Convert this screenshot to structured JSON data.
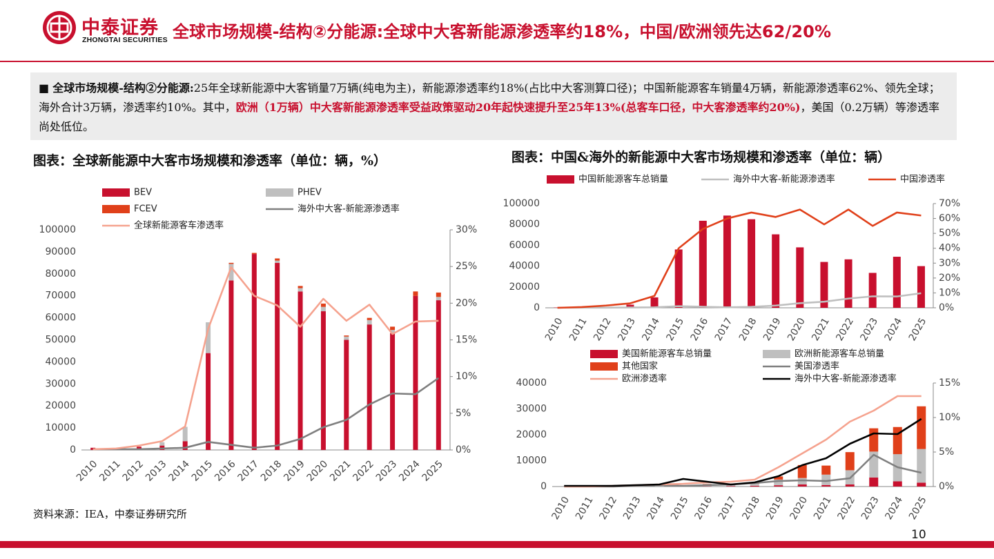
{
  "header": {
    "logo_name": "中泰证券",
    "logo_sub": "ZHONGTAI SECURITIES",
    "title": "全球市场规模-结构②分能源:全球中大客新能源渗透率约18%，中国/欧洲领先达62/20%"
  },
  "summary": {
    "bullet": "■",
    "lead": "全球市场规模-结构②分能源:",
    "text1": "25年全球新能源中大客销量7万辆(纯电为主)，新能源渗透率约18%(占比中大客测算口径)；中国新能源客车销量4万辆，新能源渗透率62%、领先全球；海外合计3万辆，渗透率约10%。其中，",
    "highlight": "欧洲（1万辆）中大客新能源渗透率受益政策驱动20年起快速提升至25年13%(总客车口径，中大客渗透率约20%)",
    "text2": "，美国（0.2万辆）等渗透率尚处低位。"
  },
  "left_chart_title": "图表：全球新能源中大客市场规模和渗透率（单位：辆，%）",
  "right_chart_title": "图表：中国&海外的新能源中大客市场规模和渗透率（单位：辆）",
  "source": "资料来源：IEA，中泰证券研究所",
  "page_number": "10",
  "colors": {
    "red": "#c8102e",
    "gray": "#bfbfbf",
    "orange": "#e0401a",
    "darkgray": "#7f7f7f",
    "salmon": "#f5a28e",
    "black": "#000000"
  },
  "chart_data": [
    {
      "id": "global",
      "type": "bar",
      "stacked": true,
      "categories": [
        "2010",
        "2011",
        "2012",
        "2013",
        "2014",
        "2015",
        "2016",
        "2017",
        "2018",
        "2019",
        "2020",
        "2021",
        "2022",
        "2023",
        "2024",
        "2025"
      ],
      "series": [
        {
          "name": "BEV",
          "kind": "bar",
          "color": "#c8102e",
          "values": [
            1000,
            500,
            1500,
            2000,
            4000,
            44000,
            77000,
            89000,
            85000,
            72000,
            63000,
            50000,
            57000,
            53000,
            70000,
            68000
          ]
        },
        {
          "name": "PHEV",
          "kind": "bar",
          "color": "#bfbfbf",
          "values": [
            0,
            0,
            0,
            1500,
            6500,
            14000,
            7500,
            0,
            1000,
            1500,
            2000,
            1500,
            2000,
            1500,
            0,
            1500
          ]
        },
        {
          "name": "FCEV",
          "kind": "bar",
          "color": "#e0401a",
          "values": [
            0,
            0,
            0,
            0,
            0,
            0,
            500,
            500,
            1000,
            1000,
            1500,
            500,
            1000,
            1500,
            2000,
            2000
          ]
        },
        {
          "name": "海外中大客-新能源渗透率",
          "kind": "line",
          "axis": "right",
          "color": "#7f7f7f",
          "values": [
            0.1,
            0.1,
            0.1,
            0.2,
            0.3,
            1.1,
            0.7,
            0.3,
            0.6,
            1.5,
            3.1,
            4.1,
            6.2,
            7.7,
            7.6,
            9.8
          ]
        },
        {
          "name": "全球新能源客车渗透率",
          "kind": "line",
          "axis": "right",
          "color": "#f5a28e",
          "values": [
            0.1,
            0.2,
            0.6,
            1.2,
            3.2,
            16.5,
            24.9,
            21.0,
            19.7,
            16.8,
            20.6,
            17.6,
            19.8,
            15.8,
            17.5,
            17.6
          ]
        }
      ],
      "ylim": [
        0,
        100000
      ],
      "yticks": [
        0,
        10000,
        20000,
        30000,
        40000,
        50000,
        60000,
        70000,
        80000,
        90000,
        100000
      ],
      "y2lim": [
        0,
        30
      ],
      "y2ticks": [
        "0%",
        "5%",
        "10%",
        "15%",
        "20%",
        "25%",
        "30%"
      ],
      "legend": "top"
    },
    {
      "id": "china",
      "type": "bar",
      "categories": [
        "2010",
        "2011",
        "2012",
        "2013",
        "2014",
        "2015",
        "2016",
        "2017",
        "2018",
        "2019",
        "2020",
        "2021",
        "2022",
        "2023",
        "2024",
        "2025"
      ],
      "series": [
        {
          "name": "中国新能源客车总销量",
          "kind": "bar",
          "color": "#c8102e",
          "values": [
            300,
            500,
            1000,
            3000,
            10000,
            56000,
            83500,
            88500,
            85000,
            70500,
            58000,
            44000,
            46500,
            33500,
            49000,
            40000
          ]
        },
        {
          "name": "海外中大客-新能源渗透率",
          "kind": "line",
          "axis": "right",
          "color": "#bfbfbf",
          "values": [
            0.1,
            0.1,
            0.1,
            0.2,
            0.3,
            1.1,
            0.7,
            0.3,
            0.6,
            1.5,
            3.1,
            4.1,
            6.2,
            7.7,
            7.6,
            9.8
          ]
        },
        {
          "name": "中国渗透率",
          "kind": "line",
          "axis": "right",
          "color": "#e0401a",
          "values": [
            0,
            0.5,
            1.5,
            3,
            8,
            40,
            53,
            60,
            64,
            61,
            66,
            56,
            66,
            55,
            64,
            62
          ]
        }
      ],
      "ylim": [
        0,
        100000
      ],
      "yticks": [
        0,
        20000,
        40000,
        60000,
        80000,
        100000
      ],
      "y2lim": [
        0,
        70
      ],
      "y2ticks": [
        "0%",
        "10%",
        "20%",
        "30%",
        "40%",
        "50%",
        "60%",
        "70%"
      ],
      "legend": "top"
    },
    {
      "id": "overseas",
      "type": "bar",
      "stacked": true,
      "categories": [
        "2010",
        "2011",
        "2012",
        "2013",
        "2014",
        "2015",
        "2016",
        "2017",
        "2018",
        "2019",
        "2020",
        "2021",
        "2022",
        "2023",
        "2024",
        "2025"
      ],
      "series": [
        {
          "name": "美国新能源客车总销量",
          "kind": "bar",
          "color": "#c8102e",
          "values": [
            0,
            0,
            0,
            0,
            0,
            0,
            100,
            200,
            300,
            500,
            800,
            600,
            800,
            3500,
            2000,
            1500
          ]
        },
        {
          "name": "欧洲新能源客车总销量",
          "kind": "bar",
          "color": "#bfbfbf",
          "values": [
            0,
            0,
            0,
            200,
            300,
            400,
            800,
            600,
            800,
            2200,
            2500,
            4000,
            5500,
            10000,
            10500,
            13000
          ]
        },
        {
          "name": "其他国家",
          "kind": "bar",
          "color": "#e0401a",
          "values": [
            0,
            0,
            0,
            0,
            0,
            0,
            100,
            200,
            300,
            1200,
            5000,
            3500,
            7000,
            9000,
            10500,
            16500
          ]
        },
        {
          "name": "美国渗透率",
          "kind": "line",
          "axis": "right",
          "color": "#7f7f7f",
          "values": [
            0,
            0,
            0,
            0.1,
            0.2,
            0.1,
            0.2,
            0.3,
            0.5,
            0.8,
            0.9,
            0.8,
            1.2,
            4.6,
            2.8,
            2.0
          ]
        },
        {
          "name": "欧洲渗透率",
          "kind": "line",
          "axis": "right",
          "color": "#f5a28e",
          "values": [
            0,
            0,
            0.1,
            0.2,
            0.3,
            0.4,
            0.6,
            0.7,
            1.0,
            2.8,
            4.8,
            6.8,
            9.4,
            11.0,
            13.1,
            13.1
          ]
        },
        {
          "name": "海外中大客-新能源渗透率",
          "kind": "line",
          "axis": "right",
          "color": "#000000",
          "values": [
            0.1,
            0.1,
            0.1,
            0.2,
            0.3,
            1.1,
            0.7,
            0.3,
            0.6,
            1.5,
            3.1,
            4.1,
            6.2,
            7.7,
            7.6,
            9.8
          ]
        }
      ],
      "ylim": [
        0,
        40000
      ],
      "yticks": [
        0,
        10000,
        20000,
        30000,
        40000
      ],
      "y2lim": [
        0,
        15
      ],
      "y2ticks": [
        "0%",
        "5%",
        "10%",
        "15%"
      ],
      "legend": "top"
    }
  ]
}
